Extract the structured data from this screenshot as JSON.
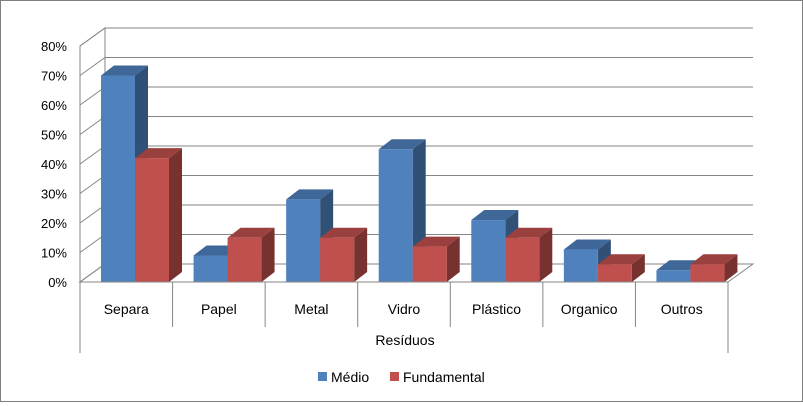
{
  "chart_data": {
    "type": "bar",
    "categories": [
      "Separa",
      "Papel",
      "Metal",
      "Vidro",
      "Plástico",
      "Organico",
      "Outros"
    ],
    "series": [
      {
        "name": "Médio",
        "values": [
          70,
          9,
          28,
          45,
          21,
          11,
          4
        ],
        "color": "#4f81bd"
      },
      {
        "name": "Fundamental",
        "values": [
          42,
          15,
          15,
          12,
          15,
          6,
          6
        ],
        "color": "#c0504d"
      }
    ],
    "title": "",
    "xlabel": "Resíduos",
    "ylabel": "",
    "ylim": [
      0,
      80
    ],
    "yticks": [
      "0%",
      "10%",
      "20%",
      "30%",
      "40%",
      "50%",
      "60%",
      "70%",
      "80%"
    ],
    "grid": true,
    "legend_position": "bottom"
  }
}
